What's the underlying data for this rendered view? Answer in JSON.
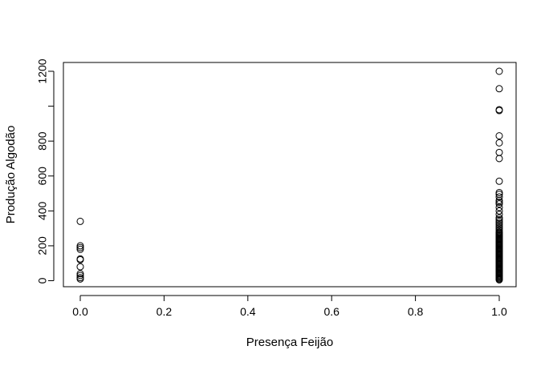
{
  "chart_data": {
    "type": "scatter",
    "title": "",
    "xlabel": "Presença Feijão",
    "ylabel": "Produção Algodão",
    "xlim": [
      0,
      1
    ],
    "ylim": [
      0,
      1200
    ],
    "x_ticks": [
      0,
      0.2,
      0.4,
      0.6,
      0.8,
      1.0
    ],
    "x_tick_labels": [
      "0.0",
      "0.2",
      "0.4",
      "0.6",
      "0.8",
      "1.0"
    ],
    "y_ticks": [
      0,
      200,
      400,
      600,
      800,
      1000,
      1200
    ],
    "y_tick_labels": [
      "0",
      "200",
      "400",
      "600",
      "800",
      "",
      "1200"
    ],
    "grid": false,
    "legend": "none",
    "series": [
      {
        "points": [
          {
            "x": 0,
            "y": 10
          },
          {
            "x": 0,
            "y": 18
          },
          {
            "x": 0,
            "y": 30
          },
          {
            "x": 0,
            "y": 40
          },
          {
            "x": 0,
            "y": 80
          },
          {
            "x": 0,
            "y": 120
          },
          {
            "x": 0,
            "y": 125
          },
          {
            "x": 0,
            "y": 180
          },
          {
            "x": 0,
            "y": 190
          },
          {
            "x": 0,
            "y": 200
          },
          {
            "x": 0,
            "y": 340
          },
          {
            "x": 1,
            "y": 5
          },
          {
            "x": 1,
            "y": 10
          },
          {
            "x": 1,
            "y": 15
          },
          {
            "x": 1,
            "y": 20
          },
          {
            "x": 1,
            "y": 25
          },
          {
            "x": 1,
            "y": 30
          },
          {
            "x": 1,
            "y": 35
          },
          {
            "x": 1,
            "y": 40
          },
          {
            "x": 1,
            "y": 45
          },
          {
            "x": 1,
            "y": 50
          },
          {
            "x": 1,
            "y": 55
          },
          {
            "x": 1,
            "y": 60
          },
          {
            "x": 1,
            "y": 65
          },
          {
            "x": 1,
            "y": 70
          },
          {
            "x": 1,
            "y": 75
          },
          {
            "x": 1,
            "y": 80
          },
          {
            "x": 1,
            "y": 85
          },
          {
            "x": 1,
            "y": 90
          },
          {
            "x": 1,
            "y": 95
          },
          {
            "x": 1,
            "y": 100
          },
          {
            "x": 1,
            "y": 105
          },
          {
            "x": 1,
            "y": 110
          },
          {
            "x": 1,
            "y": 115
          },
          {
            "x": 1,
            "y": 120
          },
          {
            "x": 1,
            "y": 125
          },
          {
            "x": 1,
            "y": 130
          },
          {
            "x": 1,
            "y": 135
          },
          {
            "x": 1,
            "y": 140
          },
          {
            "x": 1,
            "y": 145
          },
          {
            "x": 1,
            "y": 150
          },
          {
            "x": 1,
            "y": 155
          },
          {
            "x": 1,
            "y": 160
          },
          {
            "x": 1,
            "y": 165
          },
          {
            "x": 1,
            "y": 170
          },
          {
            "x": 1,
            "y": 175
          },
          {
            "x": 1,
            "y": 180
          },
          {
            "x": 1,
            "y": 185
          },
          {
            "x": 1,
            "y": 190
          },
          {
            "x": 1,
            "y": 195
          },
          {
            "x": 1,
            "y": 200
          },
          {
            "x": 1,
            "y": 205
          },
          {
            "x": 1,
            "y": 210
          },
          {
            "x": 1,
            "y": 215
          },
          {
            "x": 1,
            "y": 220
          },
          {
            "x": 1,
            "y": 225
          },
          {
            "x": 1,
            "y": 230
          },
          {
            "x": 1,
            "y": 235
          },
          {
            "x": 1,
            "y": 240
          },
          {
            "x": 1,
            "y": 245
          },
          {
            "x": 1,
            "y": 250
          },
          {
            "x": 1,
            "y": 255
          },
          {
            "x": 1,
            "y": 260
          },
          {
            "x": 1,
            "y": 265
          },
          {
            "x": 1,
            "y": 270
          },
          {
            "x": 1,
            "y": 275
          },
          {
            "x": 1,
            "y": 280
          },
          {
            "x": 1,
            "y": 290
          },
          {
            "x": 1,
            "y": 300
          },
          {
            "x": 1,
            "y": 310
          },
          {
            "x": 1,
            "y": 320
          },
          {
            "x": 1,
            "y": 330
          },
          {
            "x": 1,
            "y": 340
          },
          {
            "x": 1,
            "y": 350
          },
          {
            "x": 1,
            "y": 360
          },
          {
            "x": 1,
            "y": 380
          },
          {
            "x": 1,
            "y": 400
          },
          {
            "x": 1,
            "y": 420
          },
          {
            "x": 1,
            "y": 440
          },
          {
            "x": 1,
            "y": 450
          },
          {
            "x": 1,
            "y": 460
          },
          {
            "x": 1,
            "y": 480
          },
          {
            "x": 1,
            "y": 495
          },
          {
            "x": 1,
            "y": 505
          },
          {
            "x": 1,
            "y": 570
          },
          {
            "x": 1,
            "y": 700
          },
          {
            "x": 1,
            "y": 735
          },
          {
            "x": 1,
            "y": 790
          },
          {
            "x": 1,
            "y": 830
          },
          {
            "x": 1,
            "y": 975
          },
          {
            "x": 1,
            "y": 980
          },
          {
            "x": 1,
            "y": 1100
          },
          {
            "x": 1,
            "y": 1200
          }
        ]
      }
    ]
  }
}
